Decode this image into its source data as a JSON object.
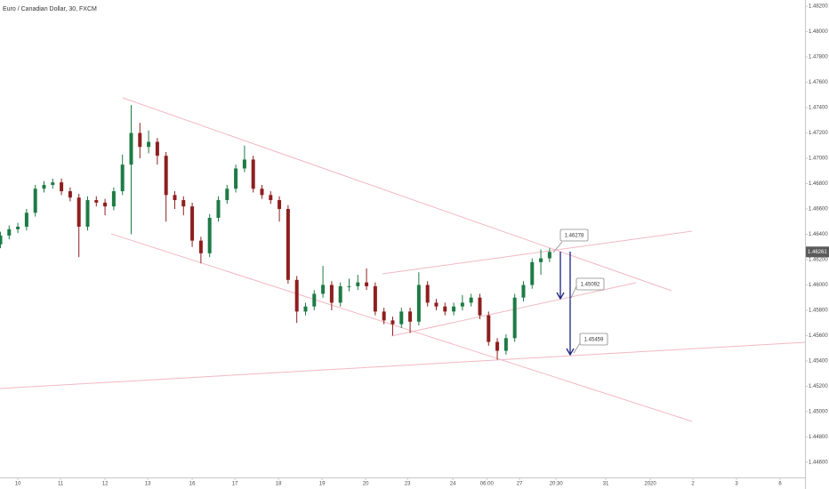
{
  "chart_data": {
    "type": "candlestick",
    "title": "Euro / Canadian Dollar, 30, FXCM",
    "x": [
      -0.4,
      -0.2,
      0,
      0.2,
      0.4,
      0.6,
      0.8,
      1,
      1.2,
      1.4,
      1.6,
      1.8,
      2,
      2.2,
      2.4,
      2.6,
      2.8,
      3,
      3.2,
      3.4,
      3.6,
      3.8,
      4,
      4.2,
      4.4,
      4.6,
      4.8,
      5,
      5.2,
      5.4,
      5.6,
      5.8,
      6,
      6.2,
      6.4,
      6.6,
      6.8,
      7,
      7.2,
      7.4,
      7.6,
      7.8,
      8,
      8.2,
      8.4,
      8.6,
      8.8,
      9,
      9.2,
      9.4,
      9.6,
      9.8,
      10,
      10.2,
      10.4,
      10.6,
      10.8,
      11,
      11.2,
      11.4,
      11.6,
      11.8,
      12,
      12.2
    ],
    "open": [
      1.4632,
      1.4639,
      1.4644,
      1.4646,
      1.4657,
      1.4676,
      1.4679,
      1.4681,
      1.4674,
      1.4669,
      1.4646,
      1.4667,
      1.4665,
      1.4662,
      1.4674,
      1.4695,
      1.472,
      1.4709,
      1.4713,
      1.4702,
      1.4671,
      1.4667,
      1.4662,
      1.4635,
      1.4625,
      1.4653,
      1.4667,
      1.4676,
      1.4692,
      1.4699,
      1.4676,
      1.4671,
      1.4667,
      1.466,
      1.4604,
      1.4579,
      1.4583,
      1.4593,
      1.46,
      1.4586,
      1.4599,
      1.4599,
      1.4602,
      1.4599,
      1.4579,
      1.4572,
      1.4569,
      1.4579,
      1.4571,
      1.46,
      1.4586,
      1.4583,
      1.4579,
      1.4583,
      1.4586,
      1.459,
      1.4576,
      1.4555,
      1.4548,
      1.4558,
      1.459,
      1.46,
      1.4618,
      1.4621
    ],
    "high": [
      1.4642,
      1.4647,
      1.4649,
      1.466,
      1.4679,
      1.4682,
      1.4684,
      1.4684,
      1.4677,
      1.4672,
      1.467,
      1.467,
      1.4668,
      1.4677,
      1.4703,
      1.4742,
      1.4728,
      1.4722,
      1.4716,
      1.4705,
      1.4674,
      1.467,
      1.4665,
      1.4638,
      1.4656,
      1.467,
      1.4679,
      1.4695,
      1.471,
      1.4702,
      1.4679,
      1.4674,
      1.467,
      1.4663,
      1.4607,
      1.4586,
      1.4596,
      1.4615,
      1.4603,
      1.4602,
      1.4605,
      1.4608,
      1.4613,
      1.4602,
      1.4582,
      1.4575,
      1.4582,
      1.4582,
      1.461,
      1.4603,
      1.4589,
      1.4586,
      1.4586,
      1.4592,
      1.4593,
      1.4593,
      1.4579,
      1.4558,
      1.4561,
      1.4593,
      1.4603,
      1.4621,
      1.4628,
      1.4629
    ],
    "low": [
      1.4629,
      1.4636,
      1.4641,
      1.4643,
      1.4654,
      1.4673,
      1.4676,
      1.4671,
      1.4666,
      1.4622,
      1.4643,
      1.4662,
      1.4655,
      1.4659,
      1.4671,
      1.464,
      1.47,
      1.4704,
      1.4695,
      1.465,
      1.466,
      1.4655,
      1.463,
      1.4617,
      1.4622,
      1.465,
      1.4664,
      1.4673,
      1.4689,
      1.4673,
      1.4668,
      1.4664,
      1.465,
      1.4601,
      1.457,
      1.4576,
      1.458,
      1.459,
      1.458,
      1.4583,
      1.4595,
      1.4596,
      1.4596,
      1.4576,
      1.4569,
      1.456,
      1.4566,
      1.4562,
      1.4568,
      1.4583,
      1.458,
      1.4576,
      1.4576,
      1.458,
      1.4583,
      1.4573,
      1.4552,
      1.4541,
      1.4545,
      1.4555,
      1.4587,
      1.4597,
      1.4608,
      1.4618
    ],
    "close": [
      1.4639,
      1.4644,
      1.4646,
      1.4657,
      1.4676,
      1.4679,
      1.4681,
      1.4674,
      1.4669,
      1.4646,
      1.4667,
      1.4665,
      1.4662,
      1.4674,
      1.4695,
      1.472,
      1.4709,
      1.4713,
      1.4702,
      1.4671,
      1.4667,
      1.4662,
      1.4635,
      1.4625,
      1.4653,
      1.4667,
      1.4676,
      1.4692,
      1.4699,
      1.4676,
      1.4671,
      1.4667,
      1.466,
      1.4604,
      1.4579,
      1.4583,
      1.4593,
      1.46,
      1.4586,
      1.4599,
      1.4599,
      1.4602,
      1.4599,
      1.4579,
      1.4572,
      1.4569,
      1.4579,
      1.4571,
      1.46,
      1.4586,
      1.4583,
      1.4579,
      1.4583,
      1.4586,
      1.459,
      1.4576,
      1.4555,
      1.4548,
      1.4558,
      1.459,
      1.46,
      1.4618,
      1.4621,
      1.46261
    ],
    "up_color": "#1e7b45",
    "down_color": "#8e1f1f",
    "xlim": [
      -0.41,
      18.06
    ],
    "xticks": [
      {
        "value": 0,
        "label": "10"
      },
      {
        "value": 0.98,
        "label": "11"
      },
      {
        "value": 2,
        "label": "12"
      },
      {
        "value": 2.98,
        "label": "13"
      },
      {
        "value": 4,
        "label": "16"
      },
      {
        "value": 4.98,
        "label": "17"
      },
      {
        "value": 5.98,
        "label": "18"
      },
      {
        "value": 6.98,
        "label": "19"
      },
      {
        "value": 7.98,
        "label": "20"
      },
      {
        "value": 8.94,
        "label": "23"
      },
      {
        "value": 9.98,
        "label": "24"
      },
      {
        "value": 10.76,
        "label": "06:00"
      },
      {
        "value": 11.51,
        "label": "27"
      },
      {
        "value": 12.35,
        "label": "20:30"
      },
      {
        "value": 13.49,
        "label": "31"
      },
      {
        "value": 14.51,
        "label": "2020"
      },
      {
        "value": 15.49,
        "label": "2"
      },
      {
        "value": 16.49,
        "label": "3"
      },
      {
        "value": 17.49,
        "label": "6"
      }
    ],
    "ylim": [
      1.4448,
      1.4825
    ],
    "yticks": [
      {
        "value": 1.446,
        "label": "1.44600"
      },
      {
        "value": 1.448,
        "label": "1.44800"
      },
      {
        "value": 1.45,
        "label": "1.45000"
      },
      {
        "value": 1.452,
        "label": "1.45200"
      },
      {
        "value": 1.454,
        "label": "1.45400"
      },
      {
        "value": 1.456,
        "label": "1.45600"
      },
      {
        "value": 1.458,
        "label": "1.45800"
      },
      {
        "value": 1.46,
        "label": "1.46000"
      },
      {
        "value": 1.462,
        "label": "1.46200"
      },
      {
        "value": 1.464,
        "label": "1.46400"
      },
      {
        "value": 1.466,
        "label": "1.46600"
      },
      {
        "value": 1.468,
        "label": "1.46800"
      },
      {
        "value": 1.47,
        "label": "1.47000"
      },
      {
        "value": 1.472,
        "label": "1.47200"
      },
      {
        "value": 1.474,
        "label": "1.47400"
      },
      {
        "value": 1.476,
        "label": "1.47600"
      },
      {
        "value": 1.478,
        "label": "1.47800"
      },
      {
        "value": 1.48,
        "label": "1.48000"
      },
      {
        "value": 1.482,
        "label": "1.48200"
      }
    ],
    "last_price_label": "1.46261",
    "annotations": [
      "1.46278",
      "1.45092",
      "1.45459"
    ],
    "grid": false
  }
}
